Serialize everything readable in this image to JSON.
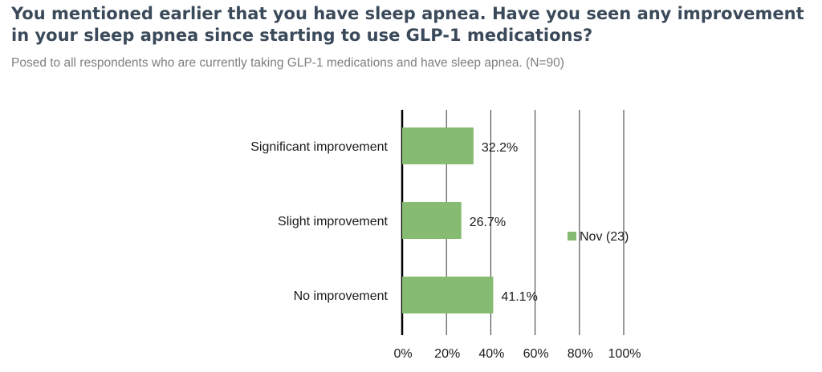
{
  "header": {
    "title": "You mentioned earlier that you have sleep apnea. Have you seen any improvement in your sleep apnea since starting to use GLP-1 medications?",
    "subtitle": "Posed to all respondents who are currently taking GLP-1 medications and have sleep apnea. (N=90)"
  },
  "chart_data": {
    "type": "bar",
    "orientation": "horizontal",
    "categories": [
      "Significant improvement",
      "Slight improvement",
      "No improvement"
    ],
    "series": [
      {
        "name": "Nov (23)",
        "values": [
          32.2,
          26.7,
          41.1
        ],
        "color": "#86bb72"
      }
    ],
    "data_labels": [
      "32.2%",
      "26.7%",
      "41.1%"
    ],
    "xlim": [
      0,
      100
    ],
    "x_ticks": [
      "0%",
      "20%",
      "40%",
      "60%",
      "80%",
      "100%"
    ],
    "grid": true,
    "legend_position": "right",
    "colors": {
      "gridline": "#333333",
      "axis": "#000000"
    }
  }
}
